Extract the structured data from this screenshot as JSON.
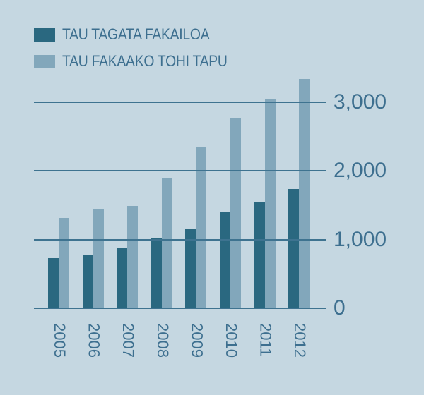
{
  "chart_data": {
    "type": "bar",
    "title": "",
    "xlabel": "",
    "ylabel": "",
    "categories": [
      "2005",
      "2006",
      "2007",
      "2008",
      "2009",
      "2010",
      "2011",
      "2012"
    ],
    "series": [
      {
        "name": "TAU TAGATA FAKAILOA",
        "color": "#2a6880",
        "values": [
          730,
          780,
          870,
          1015,
          1160,
          1405,
          1550,
          1730
        ]
      },
      {
        "name": "TAU FAKAAKO TOHI TAPU",
        "color": "#82a7bb",
        "values": [
          1310,
          1445,
          1485,
          1900,
          2340,
          2770,
          3045,
          3330
        ]
      }
    ],
    "ylim": [
      0,
      3500
    ],
    "yticks": [
      0,
      1000,
      2000,
      3000
    ],
    "ytick_labels": [
      "0",
      "1,000",
      "2,000",
      "3,000"
    ],
    "grid": true,
    "legend_position": "top-left",
    "yaxis_position": "right"
  },
  "legend": [
    {
      "label": "TAU TAGATA FAKAILOA",
      "color": "#2a6880"
    },
    {
      "label": "TAU FAKAAKO TOHI TAPU",
      "color": "#82a7bb"
    }
  ],
  "colors": {
    "background": "#c5d7e1",
    "text": "#3d6f8f",
    "grid": "#3e7390"
  }
}
